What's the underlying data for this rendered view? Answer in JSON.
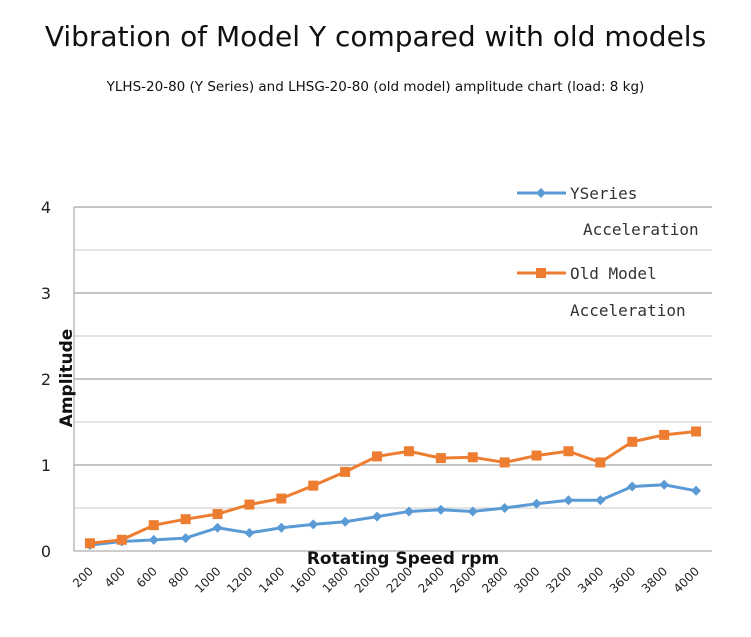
{
  "chart_data": {
    "type": "line",
    "title": "Vibration of Model Y compared with old models",
    "subtitle": "YLHS-20-80 (Y Series) and LHSG-20-80 (old model) amplitude chart (load: 8 kg)",
    "xlabel": "Rotating Speed rpm",
    "ylabel": "Amplitude",
    "x": [
      200,
      400,
      600,
      800,
      1000,
      1200,
      1400,
      1600,
      1800,
      2000,
      2200,
      2400,
      2600,
      2800,
      3000,
      3200,
      3400,
      3600,
      3800,
      4000
    ],
    "ylim": [
      0,
      4
    ],
    "yticks": [
      0,
      1,
      2,
      3,
      4
    ],
    "grid": true,
    "legend_position": "top-right",
    "series": [
      {
        "name": "Y Series Acceleration",
        "legend_line1": "YSeries",
        "legend_line2": "Acceleration",
        "color": "#5B9BD5",
        "marker": "diamond",
        "values": [
          0.07,
          0.11,
          0.13,
          0.15,
          0.27,
          0.21,
          0.27,
          0.31,
          0.34,
          0.4,
          0.46,
          0.48,
          0.46,
          0.5,
          0.55,
          0.59,
          0.59,
          0.75,
          0.77,
          0.7
        ]
      },
      {
        "name": "Old Model Acceleration",
        "legend_line1": "Old Model",
        "legend_line2": "Acceleration",
        "color": "#ED7D31",
        "marker": "square",
        "values": [
          0.09,
          0.13,
          0.3,
          0.37,
          0.43,
          0.54,
          0.61,
          0.76,
          0.92,
          1.1,
          1.16,
          1.08,
          1.09,
          1.03,
          1.11,
          1.16,
          1.03,
          1.27,
          1.35,
          1.39
        ]
      }
    ]
  }
}
